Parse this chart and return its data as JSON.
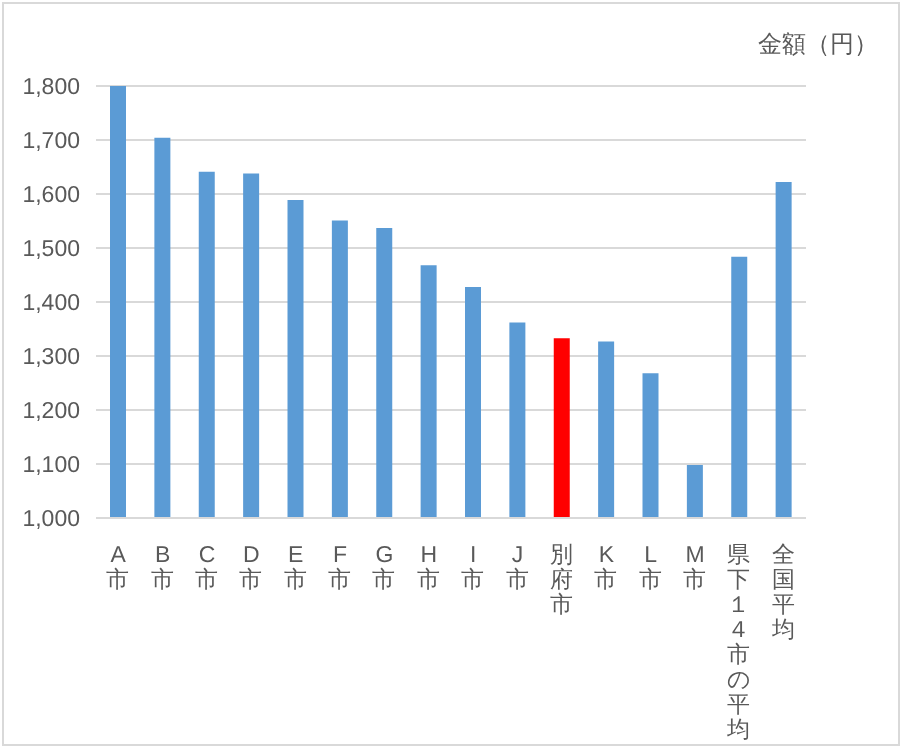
{
  "chart_data": {
    "type": "bar",
    "ylabel": "金額（円）",
    "categories": [
      "A市",
      "B市",
      "C市",
      "D市",
      "E市",
      "F市",
      "G市",
      "H市",
      "I市",
      "J市",
      "別府市",
      "K市",
      "L市",
      "M市",
      "県下１４市の平均",
      "全国平均"
    ],
    "values": [
      1800,
      1704,
      1641,
      1638,
      1589,
      1551,
      1537,
      1468,
      1428,
      1362,
      1333,
      1327,
      1268,
      1098,
      1484,
      1622
    ],
    "colors": [
      "#5b9bd5",
      "#5b9bd5",
      "#5b9bd5",
      "#5b9bd5",
      "#5b9bd5",
      "#5b9bd5",
      "#5b9bd5",
      "#5b9bd5",
      "#5b9bd5",
      "#5b9bd5",
      "#ff0000",
      "#5b9bd5",
      "#5b9bd5",
      "#5b9bd5",
      "#5b9bd5",
      "#5b9bd5"
    ],
    "ylim": [
      1000,
      1800
    ],
    "yticks": [
      {
        "value": 1000,
        "label": "1,000"
      },
      {
        "value": 1100,
        "label": "1,100"
      },
      {
        "value": 1200,
        "label": "1,200"
      },
      {
        "value": 1300,
        "label": "1,300"
      },
      {
        "value": 1400,
        "label": "1,400"
      },
      {
        "value": 1500,
        "label": "1,500"
      },
      {
        "value": 1600,
        "label": "1,600"
      },
      {
        "value": 1700,
        "label": "1,700"
      },
      {
        "value": 1800,
        "label": "1,800"
      }
    ],
    "grid": "y",
    "legend": false
  }
}
